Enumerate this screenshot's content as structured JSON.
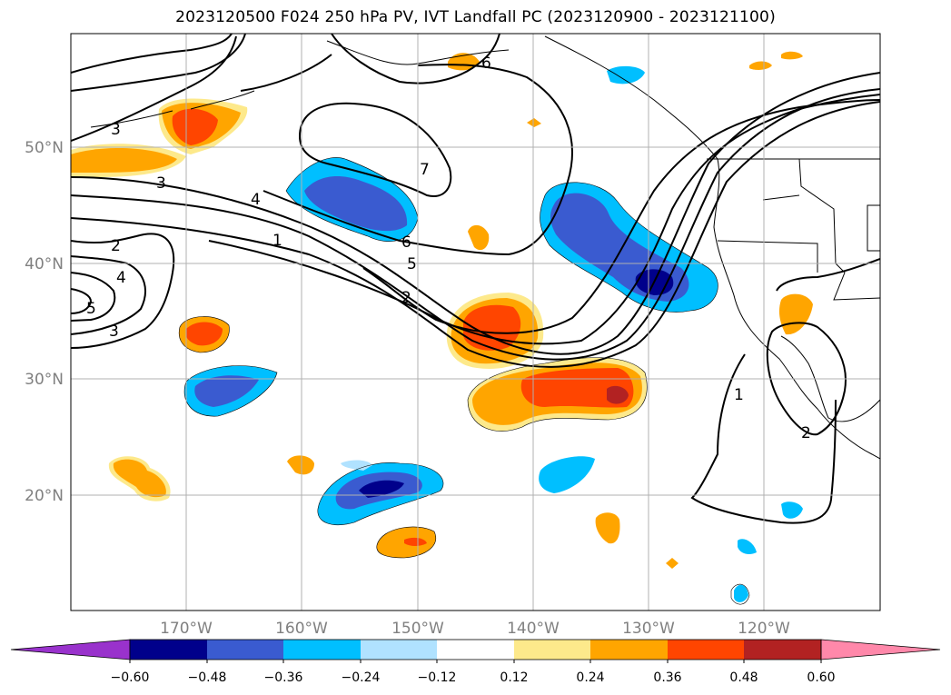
{
  "title": "2023120500 F024 250 hPa PV, IVT Landfall PC (2023120900 - 2023121100)",
  "map": {
    "lon_labels": [
      "170°W",
      "160°W",
      "150°W",
      "140°W",
      "130°W",
      "120°W"
    ],
    "lat_labels": [
      "50°N",
      "40°N",
      "30°N",
      "20°N"
    ],
    "contour_labels": [
      "1",
      "2",
      "3",
      "4",
      "5",
      "6",
      "7"
    ]
  },
  "colorbar": {
    "levels": [
      "−0.60",
      "−0.48",
      "−0.36",
      "−0.24",
      "−0.12",
      "0.12",
      "0.24",
      "0.36",
      "0.48",
      "0.60"
    ],
    "colors": [
      "#9932cc",
      "#00008b",
      "#3a5bd0",
      "#00bfff",
      "#b0e2ff",
      "#ffffff",
      "#fde98b",
      "#ffa500",
      "#ff4500",
      "#b22222",
      "#ff88aa"
    ]
  },
  "colors": {
    "neg_strong": "#00008b",
    "neg_mid": "#3a5bd0",
    "neg_light": "#00bfff",
    "neg_pale": "#b0e2ff",
    "pos_pale": "#fde98b",
    "pos_light": "#ffa500",
    "pos_mid": "#ff4500",
    "pos_strong": "#b22222"
  }
}
